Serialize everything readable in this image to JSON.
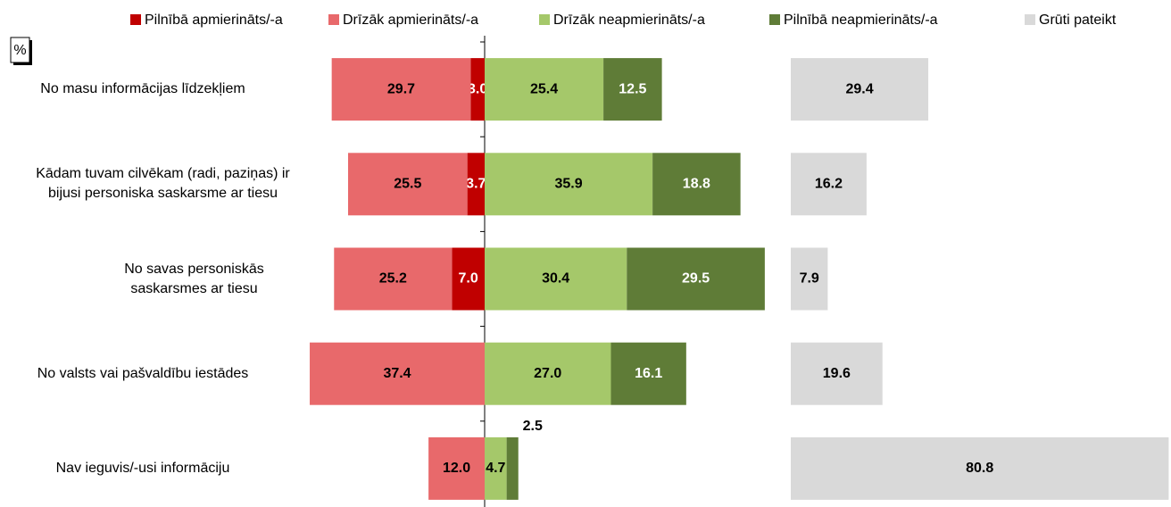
{
  "chart_data": {
    "type": "diverging-bar",
    "unit_label": "%",
    "categories": [
      "No masu informācijas līdzekļiem",
      "Kādam tuvam cilvēkam (radi, paziņas) ir bijusi personiska saskarsme ar tiesu",
      "No savas personiskās saskarsmes ar tiesu",
      "No valsts vai pašvaldību iestādes",
      "Nav ieguvis/-usi informāciju"
    ],
    "series": [
      {
        "name": "Pilnībā apmierināts/-a",
        "color": "#c00000",
        "side": "left",
        "label_color": "#ffffff",
        "values": [
          3.0,
          3.7,
          7.0,
          null,
          null
        ],
        "value_labels": [
          "3.0",
          "3.7",
          "7.0",
          null,
          null
        ]
      },
      {
        "name": "Drīzāk apmierināts/-a",
        "color": "#e8696b",
        "side": "left",
        "label_color": "#000000",
        "values": [
          29.7,
          25.5,
          25.2,
          37.4,
          12.0
        ],
        "value_labels": [
          "29.7",
          "25.5",
          "25.2",
          "37.4",
          "12.0"
        ]
      },
      {
        "name": "Drīzāk neapmierināts/-a",
        "color": "#a5c86a",
        "side": "right",
        "label_color": "#000000",
        "values": [
          25.4,
          35.9,
          30.4,
          27.0,
          4.7
        ],
        "value_labels": [
          "25.4",
          "35.9",
          "30.4",
          "27.0",
          "4.7"
        ]
      },
      {
        "name": "Pilnībā neapmierināts/-a",
        "color": "#5f7c37",
        "side": "right",
        "label_color": "#ffffff",
        "values": [
          12.5,
          18.8,
          29.5,
          16.1,
          2.5
        ],
        "value_labels": [
          "12.5",
          "18.8",
          "29.5",
          "16.1",
          "2.5"
        ]
      },
      {
        "name": "Grūti pateikt",
        "color": "#d9d9d9",
        "side": "extra",
        "label_color": "#000000",
        "values": [
          29.4,
          16.2,
          7.9,
          19.6,
          80.8
        ],
        "value_labels": [
          "29.4",
          "16.2",
          "7.9",
          "19.6",
          "80.8"
        ]
      }
    ]
  }
}
